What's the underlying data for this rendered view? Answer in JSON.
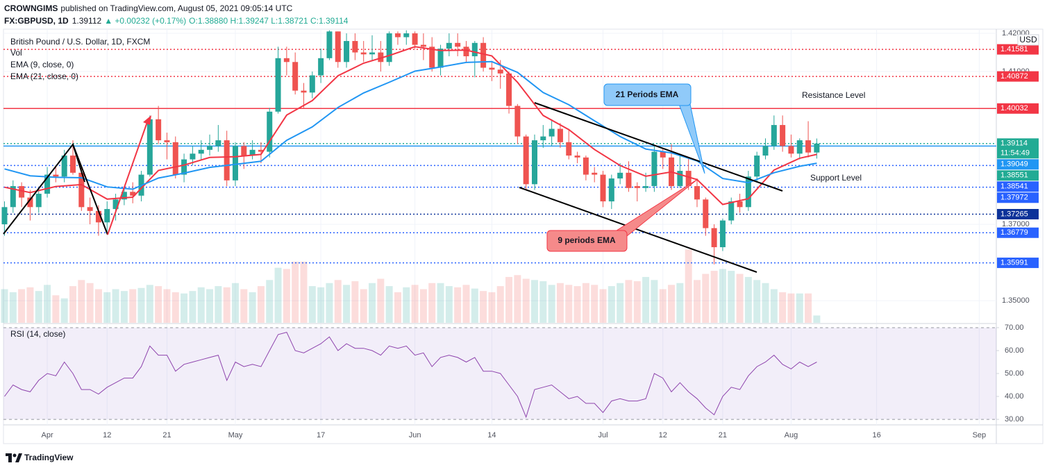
{
  "header": {
    "author": "CROWNGIMS",
    "published": "published on TradingView.com, August 05, 2021 09:05:14 UTC",
    "symbol": "FX:GBPUSD, 1D",
    "price": "1.39112",
    "change": "▲ +0.00232 (+0.17%)",
    "ohlc": "O:1.38880 H:1.39247 L:1.38721 C:1.39114"
  },
  "footer": {
    "brand": "TradingView"
  },
  "chart_data": [
    {
      "type": "candlestick",
      "title": "British Pound / U.S. Dollar, 1D, FXCM",
      "currency": "USD",
      "up_color": "#26a69a",
      "down_color": "#ef5350",
      "xlim": [
        -0.12,
        116
      ],
      "xticks": [
        {
          "value": 5,
          "label": "Apr"
        },
        {
          "value": 12,
          "label": "12"
        },
        {
          "value": 19,
          "label": "21"
        },
        {
          "value": 27,
          "label": "May"
        },
        {
          "value": 37,
          "label": "17"
        },
        {
          "value": 48,
          "label": "Jun"
        },
        {
          "value": 57,
          "label": "14"
        },
        {
          "value": 70,
          "label": "Jul"
        },
        {
          "value": 77,
          "label": "12"
        },
        {
          "value": 84,
          "label": "21"
        },
        {
          "value": 92,
          "label": "Aug"
        },
        {
          "value": 102,
          "label": "16"
        },
        {
          "value": 114,
          "label": "Sep"
        }
      ],
      "ylim": [
        1.3442,
        1.4211
      ],
      "yticks": [
        {
          "value": 1.35,
          "label": "1.35000"
        },
        {
          "value": 1.37,
          "label": "1.37000"
        },
        {
          "value": 1.41,
          "label": "1.41000"
        },
        {
          "value": 1.42,
          "label": "1.42000"
        }
      ],
      "grid": true,
      "open": [
        1.37,
        1.3745,
        1.38,
        1.377,
        1.3745,
        1.378,
        1.383,
        1.3825,
        1.388,
        1.3835,
        1.3745,
        1.3735,
        1.3705,
        1.374,
        1.3765,
        1.3785,
        1.3775,
        1.383,
        1.3975,
        1.392,
        1.3915,
        1.383,
        1.387,
        1.3885,
        1.3895,
        1.3905,
        1.392,
        1.3815,
        1.3905,
        1.388,
        1.3895,
        1.389,
        1.3995,
        1.4135,
        1.4125,
        1.405,
        1.4045,
        1.409,
        1.4135,
        1.4205,
        1.4125,
        1.418,
        1.415,
        1.4145,
        1.415,
        1.4125,
        1.42,
        1.419,
        1.42,
        1.417,
        1.4165,
        1.411,
        1.416,
        1.4175,
        1.4165,
        1.414,
        1.4175,
        1.411,
        1.4105,
        1.4095,
        1.401,
        1.393,
        1.3805,
        1.392,
        1.393,
        1.395,
        1.3915,
        1.388,
        1.3875,
        1.3835,
        1.383,
        1.376,
        1.382,
        1.3835,
        1.38,
        1.3795,
        1.38,
        1.389,
        1.3875,
        1.38,
        1.384,
        1.38,
        1.3765,
        1.369,
        1.364,
        1.371,
        1.376,
        1.3745,
        1.3825,
        1.388,
        1.3905,
        1.396,
        1.3905,
        1.3885,
        1.392,
        1.3888
      ],
      "high": [
        1.376,
        1.3815,
        1.381,
        1.379,
        1.3795,
        1.385,
        1.385,
        1.3895,
        1.392,
        1.385,
        1.377,
        1.375,
        1.376,
        1.378,
        1.38,
        1.381,
        1.384,
        1.3985,
        1.401,
        1.394,
        1.393,
        1.3885,
        1.3905,
        1.392,
        1.3935,
        1.396,
        1.3945,
        1.3915,
        1.3915,
        1.392,
        1.3915,
        1.4005,
        1.4165,
        1.4165,
        1.415,
        1.407,
        1.41,
        1.416,
        1.4208,
        1.4205,
        1.42,
        1.42,
        1.418,
        1.4195,
        1.418,
        1.4205,
        1.4205,
        1.4208,
        1.4205,
        1.42,
        1.419,
        1.417,
        1.42,
        1.42,
        1.418,
        1.418,
        1.419,
        1.4125,
        1.413,
        1.41,
        1.4015,
        1.3935,
        1.3935,
        1.396,
        1.3975,
        1.3965,
        1.395,
        1.389,
        1.388,
        1.385,
        1.384,
        1.383,
        1.386,
        1.3865,
        1.381,
        1.3835,
        1.3905,
        1.39,
        1.391,
        1.388,
        1.3875,
        1.382,
        1.377,
        1.37,
        1.3715,
        1.377,
        1.378,
        1.384,
        1.389,
        1.3925,
        1.3985,
        1.3985,
        1.3935,
        1.3925,
        1.397,
        1.39247
      ],
      "low": [
        1.367,
        1.373,
        1.3745,
        1.371,
        1.373,
        1.377,
        1.381,
        1.381,
        1.383,
        1.3735,
        1.37,
        1.367,
        1.368,
        1.371,
        1.375,
        1.3755,
        1.376,
        1.3825,
        1.391,
        1.387,
        1.382,
        1.381,
        1.3855,
        1.387,
        1.388,
        1.389,
        1.38,
        1.38,
        1.3845,
        1.387,
        1.386,
        1.3875,
        1.399,
        1.409,
        1.404,
        1.4005,
        1.403,
        1.407,
        1.413,
        1.411,
        1.411,
        1.413,
        1.4125,
        1.413,
        1.41,
        1.4115,
        1.417,
        1.417,
        1.416,
        1.413,
        1.41,
        1.409,
        1.414,
        1.414,
        1.4125,
        1.4085,
        1.41,
        1.4075,
        1.4055,
        1.399,
        1.391,
        1.379,
        1.379,
        1.39,
        1.3905,
        1.39,
        1.387,
        1.386,
        1.3815,
        1.381,
        1.3745,
        1.374,
        1.3805,
        1.3785,
        1.376,
        1.3785,
        1.3785,
        1.3845,
        1.379,
        1.3795,
        1.379,
        1.3745,
        1.367,
        1.3595,
        1.363,
        1.37,
        1.373,
        1.3735,
        1.381,
        1.387,
        1.3895,
        1.389,
        1.3875,
        1.387,
        1.3875,
        1.38721
      ],
      "close": [
        1.3745,
        1.38,
        1.377,
        1.3745,
        1.378,
        1.383,
        1.3825,
        1.388,
        1.3835,
        1.3745,
        1.3735,
        1.3705,
        1.374,
        1.3765,
        1.3785,
        1.3775,
        1.383,
        1.3975,
        1.392,
        1.3915,
        1.383,
        1.387,
        1.3885,
        1.3895,
        1.3905,
        1.392,
        1.3815,
        1.3905,
        1.388,
        1.3895,
        1.389,
        1.3995,
        1.4135,
        1.4125,
        1.405,
        1.4045,
        1.409,
        1.4135,
        1.4205,
        1.4125,
        1.418,
        1.415,
        1.4145,
        1.415,
        1.4125,
        1.42,
        1.419,
        1.42,
        1.417,
        1.4165,
        1.411,
        1.416,
        1.4175,
        1.4165,
        1.414,
        1.4175,
        1.411,
        1.4105,
        1.4095,
        1.401,
        1.393,
        1.3805,
        1.392,
        1.393,
        1.395,
        1.3915,
        1.388,
        1.3875,
        1.383,
        1.383,
        1.376,
        1.382,
        1.3835,
        1.3795,
        1.3795,
        1.38,
        1.389,
        1.3875,
        1.38,
        1.384,
        1.38,
        1.3765,
        1.369,
        1.364,
        1.371,
        1.376,
        1.3745,
        1.3825,
        1.388,
        1.3905,
        1.396,
        1.3905,
        1.3885,
        1.392,
        1.3888,
        1.39114
      ],
      "volume": {
        "name": "Vol",
        "ylim": [
          0,
          480
        ],
        "values": [
          55,
          50,
          55,
          58,
          52,
          62,
          45,
          40,
          60,
          70,
          65,
          55,
          50,
          55,
          52,
          55,
          57,
          62,
          60,
          55,
          50,
          48,
          52,
          58,
          55,
          60,
          58,
          65,
          55,
          50,
          60,
          70,
          90,
          88,
          100,
          100,
          60,
          58,
          65,
          70,
          62,
          68,
          55,
          65,
          72,
          60,
          50,
          58,
          62,
          55,
          65,
          65,
          60,
          58,
          62,
          56,
          52,
          50,
          60,
          75,
          78,
          72,
          70,
          68,
          62,
          65,
          62,
          60,
          65,
          62,
          55,
          60,
          65,
          70,
          68,
          75,
          70,
          55,
          62,
          65,
          120,
          70,
          80,
          85,
          88,
          85,
          80,
          75,
          70,
          65,
          55,
          50,
          48,
          48,
          48,
          12
        ]
      },
      "series": [
        {
          "name": "EMA (9, close, 0)",
          "color": "#f23645",
          "x": [
            0,
            3,
            6,
            9,
            12,
            15,
            18,
            21,
            24,
            27,
            30,
            33,
            36,
            39,
            42,
            45,
            48,
            51,
            54,
            57,
            60,
            63,
            66,
            69,
            72,
            75,
            78,
            81,
            84,
            87,
            90,
            93,
            95
          ],
          "values": [
            1.3797,
            1.3783,
            1.3799,
            1.3804,
            1.3766,
            1.3771,
            1.3841,
            1.3855,
            1.3875,
            1.3877,
            1.3883,
            1.3986,
            1.4024,
            1.4089,
            1.4122,
            1.4142,
            1.4165,
            1.4155,
            1.4156,
            1.4141,
            1.4072,
            1.3985,
            1.3948,
            1.3896,
            1.3854,
            1.3826,
            1.3837,
            1.3817,
            1.3752,
            1.3767,
            1.3842,
            1.3873,
            1.3883
          ]
        },
        {
          "name": "EMA (21, close, 0)",
          "color": "#2196f3",
          "x": [
            0,
            3,
            6,
            9,
            12,
            15,
            18,
            21,
            24,
            27,
            30,
            33,
            36,
            39,
            42,
            45,
            48,
            51,
            54,
            57,
            60,
            63,
            66,
            69,
            72,
            75,
            78,
            81,
            84,
            87,
            90,
            93,
            95
          ],
          "values": [
            1.3845,
            1.3827,
            1.3823,
            1.3822,
            1.3798,
            1.3792,
            1.3821,
            1.3834,
            1.3849,
            1.3857,
            1.3865,
            1.392,
            1.3955,
            1.4006,
            1.4044,
            1.4072,
            1.4101,
            1.4112,
            1.4124,
            1.4126,
            1.4098,
            1.4045,
            1.4013,
            1.3971,
            1.393,
            1.3897,
            1.3887,
            1.3866,
            1.382,
            1.3809,
            1.3835,
            1.3852,
            1.386
          ]
        }
      ],
      "levels": [
        {
          "value": 1.41581,
          "color": "#f23645",
          "style": "dotted"
        },
        {
          "value": 1.40872,
          "color": "#f23645",
          "style": "dotted"
        },
        {
          "value": 1.40032,
          "color": "#f23645",
          "style": "solid"
        },
        {
          "value": 1.39114,
          "color": "#22ab94",
          "style": "dotted",
          "countdown": "11:54:49"
        },
        {
          "value": 1.39049,
          "color": "#2196f3",
          "style": "solid"
        },
        {
          "value": 1.38551,
          "color": "#22ab94",
          "style": "none"
        },
        {
          "value": 1.38541,
          "color": "#2962ff",
          "style": "dotted"
        },
        {
          "value": 1.37972,
          "color": "#2962ff",
          "style": "dotted"
        },
        {
          "value": 1.37265,
          "color": "#0c3299",
          "style": "dotted"
        },
        {
          "value": 1.36779,
          "color": "#2962ff",
          "style": "dotted"
        },
        {
          "value": 1.35991,
          "color": "#2962ff",
          "style": "dotted"
        }
      ],
      "annotations": [
        "21 Periods EMA",
        "9 periods EMA",
        "Resistance Level",
        "Support Level"
      ]
    },
    {
      "type": "line",
      "title": "RSI (14, close)",
      "color": "#8e44ad",
      "band": [
        30,
        70
      ],
      "ylim": [
        27.6,
        71.5
      ],
      "yticks": [
        {
          "value": 30,
          "label": "30.00"
        },
        {
          "value": 40,
          "label": "40.00"
        },
        {
          "value": 50,
          "label": "50.00"
        },
        {
          "value": 60,
          "label": "60.00"
        },
        {
          "value": 70,
          "label": "70.00"
        }
      ],
      "values": [
        40,
        45,
        43,
        42,
        47,
        50,
        49,
        55,
        50,
        43,
        43,
        41,
        44,
        46,
        48,
        48,
        53,
        62,
        58,
        58,
        51,
        54,
        55,
        56,
        57,
        58,
        47,
        55,
        53,
        54,
        53,
        60,
        67,
        68,
        60,
        59,
        61,
        63,
        66,
        60,
        63,
        61,
        61,
        60,
        58,
        62,
        61,
        62,
        58,
        59,
        53,
        57,
        58,
        57,
        55,
        57,
        51,
        51,
        50,
        45,
        40,
        31,
        43,
        44,
        45,
        42,
        39,
        40,
        37,
        37,
        33,
        38,
        39,
        38,
        38,
        39,
        50,
        48,
        42,
        46,
        42,
        39,
        35,
        32,
        40,
        44,
        43,
        49,
        53,
        55,
        58,
        54,
        52,
        55,
        53,
        55
      ]
    }
  ]
}
